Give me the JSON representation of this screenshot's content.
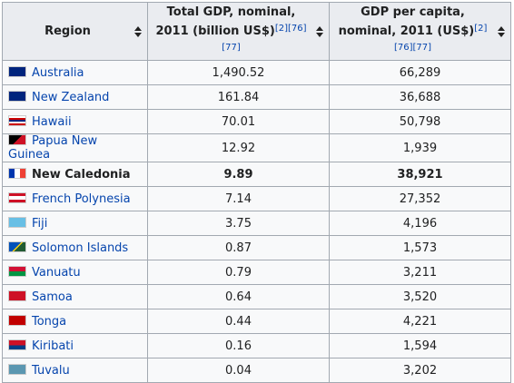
{
  "table": {
    "headers": [
      {
        "text": "Region"
      },
      {
        "text": "Total GDP, nominal, 2011 (billion US$)",
        "refs": "[2][76][77]"
      },
      {
        "text": "GDP per capita, nominal, 2011 (US$)",
        "refs": "[2][76][77]"
      }
    ],
    "rows": [
      {
        "region": "Australia",
        "gdp": "1,490.52",
        "per_capita": "66,289"
      },
      {
        "region": "New Zealand",
        "gdp": "161.84",
        "per_capita": "36,688"
      },
      {
        "region": "Hawaii",
        "gdp": "70.01",
        "per_capita": "50,798"
      },
      {
        "region": "Papua New Guinea",
        "gdp": "12.92",
        "per_capita": "1,939"
      },
      {
        "region": "New Caledonia",
        "gdp": "9.89",
        "per_capita": "38,921",
        "bold": true
      },
      {
        "region": "French Polynesia",
        "gdp": "7.14",
        "per_capita": "27,352"
      },
      {
        "region": "Fiji",
        "gdp": "3.75",
        "per_capita": "4,196"
      },
      {
        "region": "Solomon Islands",
        "gdp": "0.87",
        "per_capita": "1,573"
      },
      {
        "region": "Vanuatu",
        "gdp": "0.79",
        "per_capita": "3,211"
      },
      {
        "region": "Samoa",
        "gdp": "0.64",
        "per_capita": "3,520"
      },
      {
        "region": "Tonga",
        "gdp": "0.44",
        "per_capita": "4,221"
      },
      {
        "region": "Kiribati",
        "gdp": "0.16",
        "per_capita": "1,594"
      },
      {
        "region": "Tuvalu",
        "gdp": "0.04",
        "per_capita": "3,202"
      }
    ]
  }
}
